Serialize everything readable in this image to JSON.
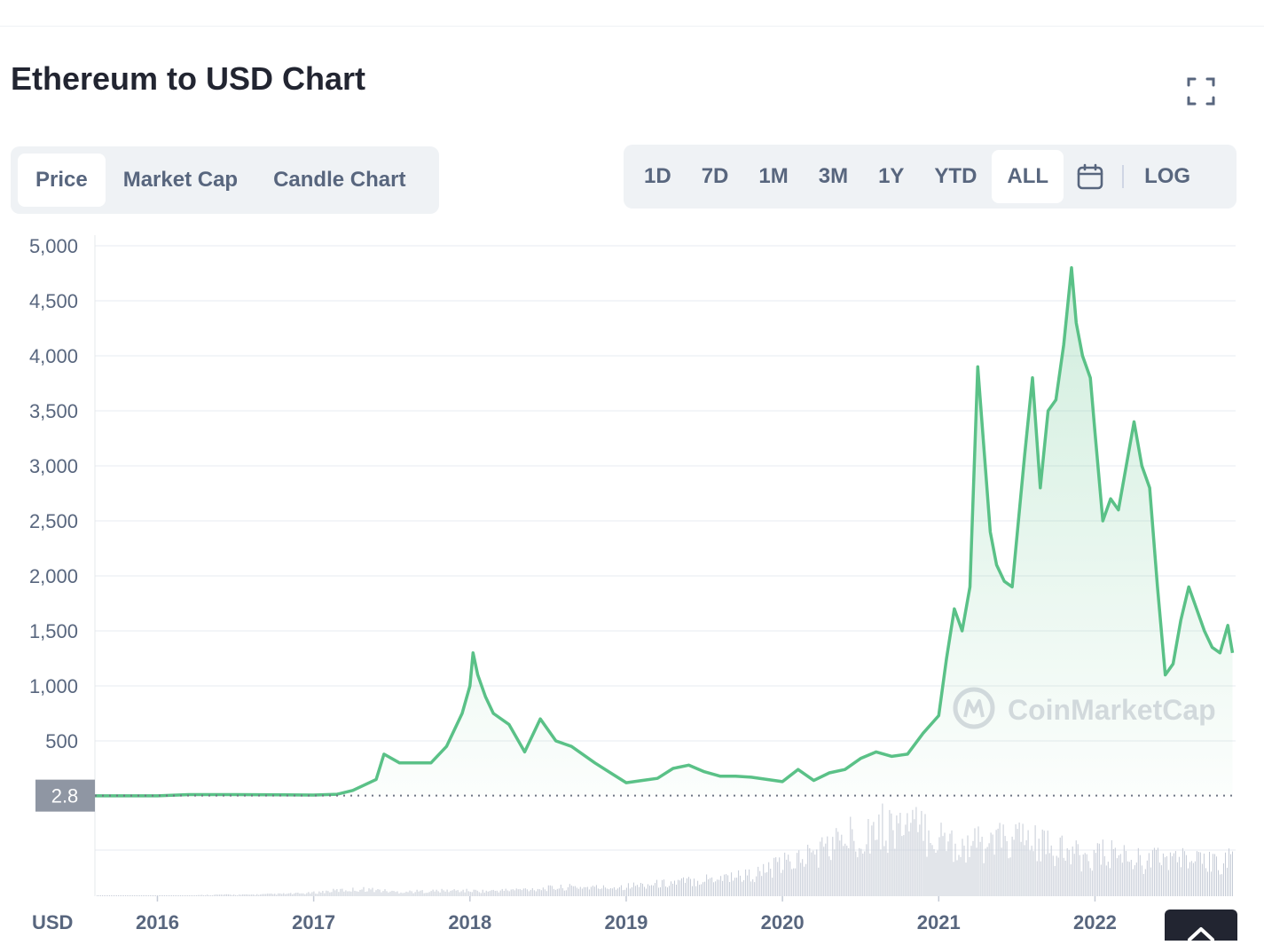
{
  "page": {
    "title": "Ethereum to USD Chart"
  },
  "tabs": [
    {
      "label": "Price",
      "active": true
    },
    {
      "label": "Market Cap",
      "active": false
    },
    {
      "label": "Candle Chart",
      "active": false
    }
  ],
  "ranges": [
    {
      "label": "1D",
      "active": false
    },
    {
      "label": "7D",
      "active": false
    },
    {
      "label": "1M",
      "active": false
    },
    {
      "label": "3M",
      "active": false
    },
    {
      "label": "1Y",
      "active": false
    },
    {
      "label": "YTD",
      "active": false
    },
    {
      "label": "ALL",
      "active": true
    }
  ],
  "log_label": "LOG",
  "icons": {
    "fullscreen": "fullscreen-icon",
    "calendar": "calendar-icon",
    "back_to_top": "chevron-up-icon"
  },
  "colors": {
    "line": "#5ac187",
    "accent_gray": "#8f96a3",
    "text_muted": "#58667e"
  },
  "chart_data": {
    "type": "area",
    "title": "Ethereum to USD Chart",
    "currency_label": "USD",
    "watermark": "CoinMarketCap",
    "current_tag": "2.8",
    "ylim": [
      0,
      5000
    ],
    "yticks": [
      "5,000",
      "4,500",
      "4,000",
      "3,500",
      "3,000",
      "2,500",
      "2,000",
      "1,500",
      "1,000",
      "500"
    ],
    "ytick_values": [
      5000,
      4500,
      4000,
      3500,
      3000,
      2500,
      2000,
      1500,
      1000,
      500
    ],
    "xticks": [
      "2016",
      "2017",
      "2018",
      "2019",
      "2020",
      "2021",
      "2022"
    ],
    "xlim": [
      2015.6,
      2022.9
    ],
    "grid": true,
    "series": [
      {
        "x": [
          2015.6,
          2016.0,
          2016.2,
          2016.5,
          2016.8,
          2017.0,
          2017.15,
          2017.25,
          2017.4,
          2017.45,
          2017.55,
          2017.65,
          2017.75,
          2017.85,
          2017.95,
          2018.0,
          2018.02,
          2018.05,
          2018.1,
          2018.15,
          2018.25,
          2018.35,
          2018.45,
          2018.55,
          2018.65,
          2018.8,
          2018.9,
          2019.0,
          2019.1,
          2019.2,
          2019.3,
          2019.4,
          2019.5,
          2019.6,
          2019.7,
          2019.8,
          2019.9,
          2020.0,
          2020.1,
          2020.2,
          2020.3,
          2020.4,
          2020.5,
          2020.6,
          2020.7,
          2020.8,
          2020.9,
          2021.0,
          2021.05,
          2021.1,
          2021.15,
          2021.2,
          2021.25,
          2021.33,
          2021.37,
          2021.42,
          2021.47,
          2021.55,
          2021.6,
          2021.65,
          2021.7,
          2021.75,
          2021.8,
          2021.85,
          2021.88,
          2021.92,
          2021.97,
          2022.0,
          2022.05,
          2022.1,
          2022.15,
          2022.25,
          2022.3,
          2022.35,
          2022.4,
          2022.45,
          2022.5,
          2022.55,
          2022.6,
          2022.65,
          2022.7,
          2022.75,
          2022.8,
          2022.85,
          2022.88
        ],
        "values": [
          1,
          1,
          12,
          12,
          10,
          8,
          15,
          50,
          150,
          380,
          300,
          300,
          300,
          450,
          750,
          1000,
          1300,
          1100,
          900,
          750,
          650,
          400,
          700,
          500,
          450,
          300,
          210,
          120,
          140,
          160,
          250,
          280,
          220,
          180,
          180,
          170,
          150,
          130,
          240,
          140,
          210,
          240,
          340,
          400,
          360,
          380,
          570,
          730,
          1250,
          1700,
          1500,
          1900,
          3900,
          2400,
          2100,
          1950,
          1900,
          3100,
          3800,
          2800,
          3500,
          3600,
          4100,
          4800,
          4300,
          4000,
          3800,
          3300,
          2500,
          2700,
          2600,
          3400,
          3000,
          2800,
          1900,
          1100,
          1200,
          1600,
          1900,
          1700,
          1500,
          1350,
          1300,
          1550,
          1300
        ]
      }
    ],
    "volume": [
      1,
      1,
      1,
      1,
      2,
      2,
      3,
      4,
      8,
      10,
      6,
      7,
      8,
      7,
      9,
      11,
      13,
      12,
      15,
      18,
      22,
      28,
      30,
      45,
      60,
      80,
      95,
      100,
      85,
      70,
      75,
      80,
      65,
      55,
      60,
      50,
      55,
      45,
      52
    ]
  }
}
